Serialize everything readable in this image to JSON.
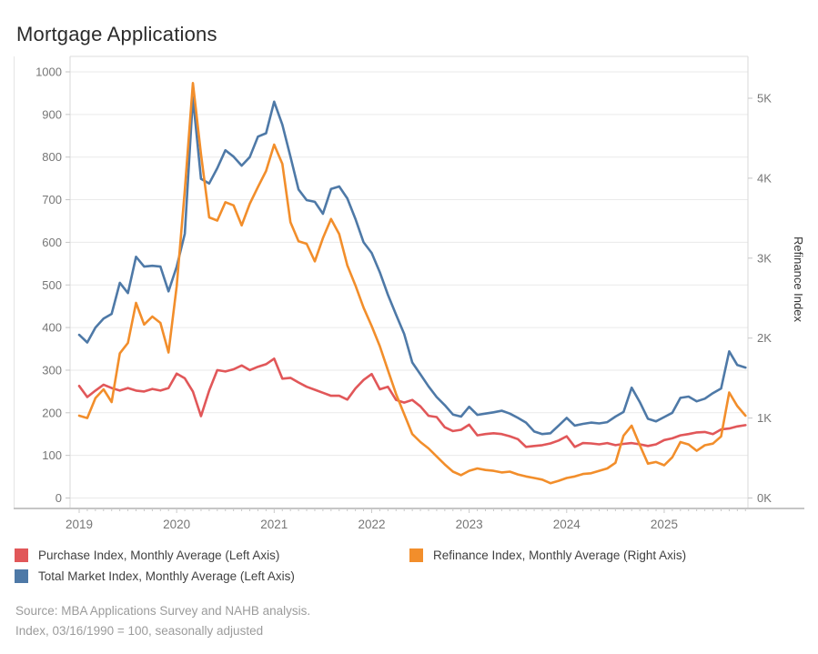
{
  "title": "Mortgage Applications",
  "chart_data": {
    "type": "line",
    "title": "Mortgage Applications",
    "x": {
      "start": "2019-01",
      "frequency": "monthly",
      "year_ticks": [
        "2019",
        "2020",
        "2021",
        "2022",
        "2023",
        "2024",
        "2025"
      ]
    },
    "left_axis": {
      "ticks": [
        0,
        100,
        200,
        300,
        400,
        500,
        600,
        700,
        800,
        900,
        1000
      ],
      "range": [
        0,
        1000
      ]
    },
    "right_axis": {
      "title": "Refinance Index",
      "tick_labels": [
        "0K",
        "1K",
        "2K",
        "3K",
        "4K",
        "5K"
      ],
      "range": [
        0,
        5000
      ]
    },
    "grid": "horizontal",
    "legend_position": "bottom",
    "series": [
      {
        "name": "Purchase Index, Monthly Average (Left Axis)",
        "axis": "left",
        "color": "#e15759",
        "values": [
          263,
          237,
          252,
          266,
          258,
          252,
          258,
          252,
          250,
          256,
          252,
          258,
          292,
          281,
          250,
          192,
          252,
          300,
          297,
          302,
          311,
          300,
          308,
          314,
          327,
          280,
          282,
          271,
          261,
          254,
          247,
          240,
          240,
          231,
          257,
          277,
          291,
          255,
          261,
          230,
          224,
          230,
          215,
          193,
          190,
          166,
          157,
          160,
          172,
          147,
          150,
          152,
          150,
          145,
          138,
          120,
          122,
          124,
          128,
          135,
          145,
          120,
          129,
          128,
          126,
          129,
          124,
          127,
          129,
          126,
          122,
          126,
          136,
          140,
          147,
          150,
          154,
          155,
          150,
          161,
          163,
          168,
          171
        ]
      },
      {
        "name": "Total Market Index, Monthly Average (Left Axis)",
        "axis": "left",
        "color": "#4e79a7",
        "values": [
          383,
          365,
          400,
          421,
          432,
          505,
          481,
          566,
          543,
          545,
          543,
          485,
          543,
          620,
          940,
          749,
          738,
          774,
          816,
          801,
          780,
          800,
          848,
          856,
          930,
          876,
          801,
          724,
          699,
          695,
          667,
          725,
          731,
          703,
          655,
          600,
          575,
          530,
          477,
          430,
          385,
          318,
          290,
          262,
          237,
          218,
          196,
          191,
          214,
          195,
          198,
          201,
          205,
          198,
          188,
          177,
          156,
          150,
          152,
          170,
          188,
          170,
          174,
          177,
          175,
          178,
          191,
          202,
          259,
          225,
          186,
          180,
          190,
          200,
          235,
          238,
          227,
          233,
          246,
          257,
          344,
          312,
          306
        ]
      },
      {
        "name": "Refinance Index, Monthly Average (Right Axis)",
        "axis": "right",
        "color": "#f28e2b",
        "values": [
          1030,
          1000,
          1250,
          1360,
          1200,
          1810,
          1940,
          2440,
          2170,
          2270,
          2190,
          1820,
          2650,
          3850,
          5190,
          4300,
          3510,
          3470,
          3700,
          3660,
          3410,
          3680,
          3890,
          4090,
          4420,
          4180,
          3450,
          3210,
          3180,
          2960,
          3250,
          3490,
          3300,
          2910,
          2660,
          2380,
          2150,
          1900,
          1600,
          1300,
          1050,
          800,
          700,
          620,
          520,
          420,
          330,
          285,
          340,
          370,
          350,
          340,
          320,
          330,
          295,
          270,
          250,
          230,
          185,
          215,
          250,
          270,
          300,
          310,
          340,
          370,
          440,
          780,
          905,
          660,
          430,
          450,
          410,
          510,
          700,
          670,
          590,
          660,
          680,
          770,
          1320,
          1150,
          1030
        ]
      }
    ]
  },
  "source_note": {
    "line1": "Source: MBA Applications Survey and NAHB analysis.",
    "line2": "Index, 03/16/1990 = 100, seasonally adjusted"
  }
}
